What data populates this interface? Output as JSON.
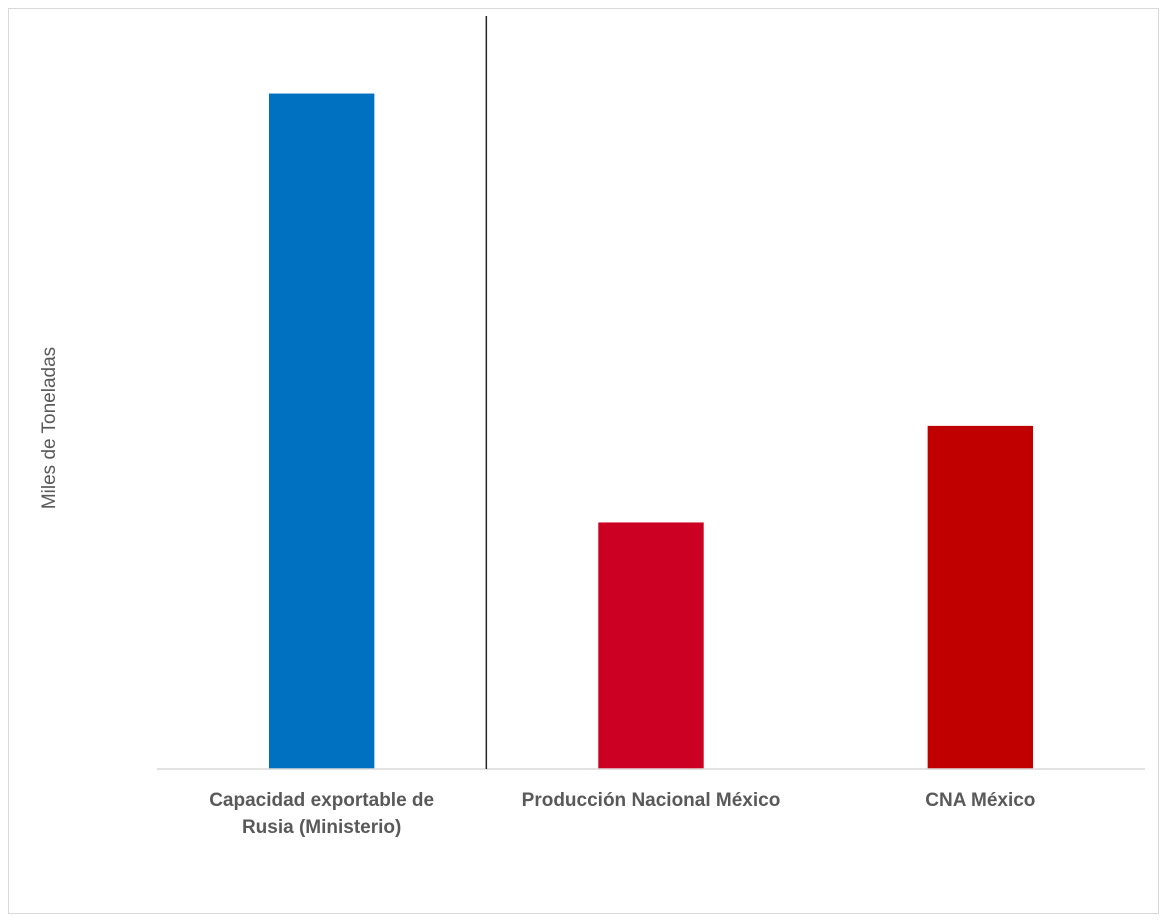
{
  "chart_data": {
    "type": "bar",
    "title": "",
    "xlabel": "",
    "ylabel": "Miles de Toneladas",
    "categories": [
      [
        "Capacidad exportable de",
        "Rusia (Ministerio)"
      ],
      [
        "Producción Nacional México"
      ],
      [
        "CNA México"
      ]
    ],
    "values": [
      100,
      36.5,
      50.8
    ],
    "colors": [
      "#0070C0",
      "#CC0022",
      "#C00000"
    ],
    "ylim": [
      0,
      110
    ],
    "y_ticks_shown": false,
    "grid": false,
    "legend": "none",
    "separator_after_category": 0
  }
}
